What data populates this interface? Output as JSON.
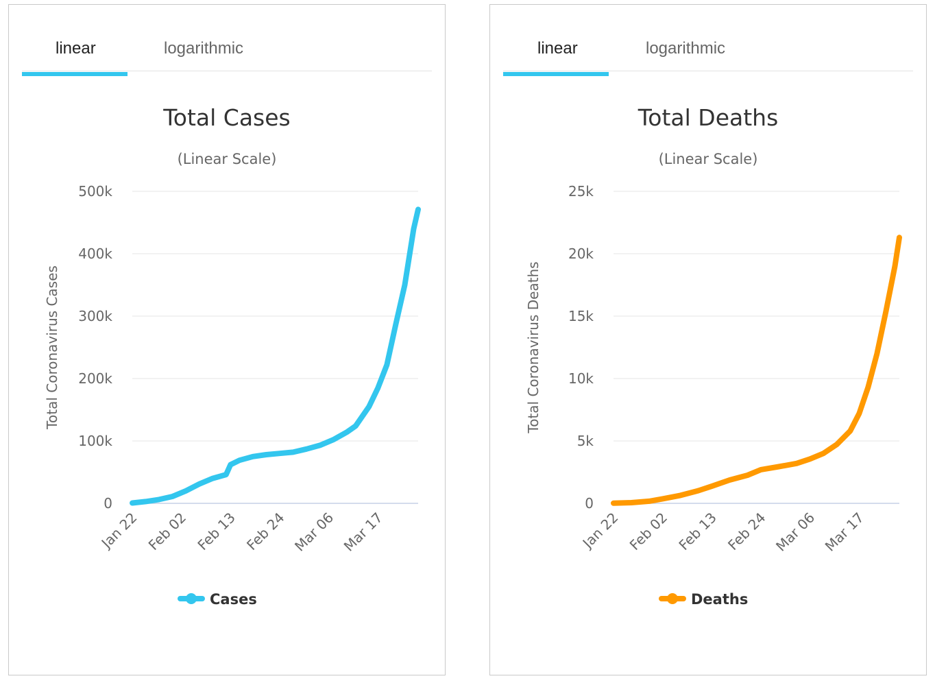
{
  "tabs": {
    "linear": "linear",
    "logarithmic": "logarithmic"
  },
  "chart_data": [
    {
      "type": "line",
      "title": "Total Cases",
      "subtitle": "(Linear Scale)",
      "ylabel": "Total Coronavirus Cases",
      "xlabel": "",
      "ylim": [
        0,
        500000
      ],
      "yticks": [
        0,
        100000,
        200000,
        300000,
        400000,
        500000
      ],
      "ytick_labels": [
        "0",
        "100k",
        "200k",
        "300k",
        "400k",
        "500k"
      ],
      "xtick_labels": [
        "Jan 22",
        "Feb 02",
        "Feb 13",
        "Feb 24",
        "Mar 06",
        "Mar 17"
      ],
      "grid": true,
      "legend": "bottom-center",
      "color": "#33c6ee",
      "series": [
        {
          "name": "Cases",
          "x": [
            "Jan 22",
            "Jan 25",
            "Jan 28",
            "Jan 31",
            "Feb 03",
            "Feb 06",
            "Feb 09",
            "Feb 12",
            "Feb 13",
            "Feb 15",
            "Feb 18",
            "Feb 21",
            "Feb 24",
            "Feb 27",
            "Mar 01",
            "Mar 04",
            "Mar 07",
            "Mar 10",
            "Mar 12",
            "Mar 15",
            "Mar 17",
            "Mar 19",
            "Mar 21",
            "Mar 23",
            "Mar 25",
            "Mar 26"
          ],
          "values": [
            580,
            2900,
            6100,
            11000,
            20000,
            31000,
            40000,
            46000,
            62000,
            69000,
            75000,
            78000,
            80000,
            82000,
            87000,
            93000,
            102000,
            114000,
            124000,
            155000,
            185000,
            222000,
            287000,
            350000,
            440000,
            471000
          ]
        }
      ]
    },
    {
      "type": "line",
      "title": "Total Deaths",
      "subtitle": "(Linear Scale)",
      "ylabel": "Total Coronavirus Deaths",
      "xlabel": "",
      "ylim": [
        0,
        25000
      ],
      "yticks": [
        0,
        5000,
        10000,
        15000,
        20000,
        25000
      ],
      "ytick_labels": [
        "0",
        "5k",
        "10k",
        "15k",
        "20k",
        "25k"
      ],
      "xtick_labels": [
        "Jan 22",
        "Feb 02",
        "Feb 13",
        "Feb 24",
        "Mar 06",
        "Mar 17"
      ],
      "grid": true,
      "legend": "bottom-center",
      "color": "#ff9900",
      "series": [
        {
          "name": "Deaths",
          "x": [
            "Jan 22",
            "Jan 26",
            "Jan 30",
            "Feb 02",
            "Feb 06",
            "Feb 10",
            "Feb 13",
            "Feb 17",
            "Feb 21",
            "Feb 24",
            "Feb 28",
            "Mar 03",
            "Mar 06",
            "Mar 09",
            "Mar 12",
            "Mar 15",
            "Mar 17",
            "Mar 19",
            "Mar 21",
            "Mar 23",
            "Mar 25",
            "Mar 26"
          ],
          "values": [
            17,
            56,
            170,
            362,
            636,
            1018,
            1369,
            1868,
            2250,
            2699,
            2942,
            3200,
            3555,
            4000,
            4720,
            5800,
            7200,
            9300,
            12000,
            15400,
            19000,
            21300
          ]
        }
      ]
    }
  ]
}
